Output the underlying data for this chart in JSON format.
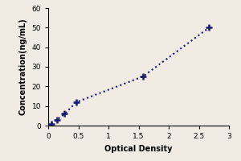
{
  "x_data": [
    0.05,
    0.15,
    0.27,
    0.47,
    1.57,
    2.67
  ],
  "y_data": [
    1.0,
    3.0,
    6.0,
    12.0,
    25.0,
    50.0
  ],
  "xlabel": "Optical Density",
  "ylabel": "Concentration(ng/mL)",
  "xlim": [
    0,
    3.0
  ],
  "ylim": [
    0,
    60
  ],
  "xticks": [
    0,
    0.5,
    1,
    1.5,
    2,
    2.5,
    3
  ],
  "yticks": [
    0,
    10,
    20,
    30,
    40,
    50,
    60
  ],
  "marker": "+",
  "marker_color": "#1a1a6e",
  "line_color": "#1a1a6e",
  "line_style": "dotted",
  "marker_size": 6,
  "marker_edge_width": 1.8,
  "line_width": 1.5,
  "bg_color": "#f0ece4",
  "font_size_label": 7,
  "font_size_tick": 6.5,
  "label_fontweight": "bold"
}
